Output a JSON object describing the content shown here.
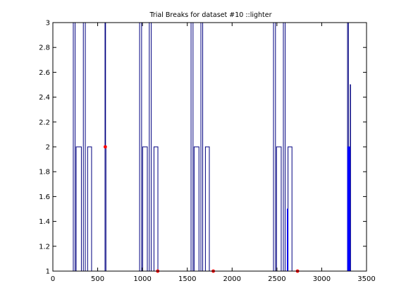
{
  "chart_data": {
    "type": "line",
    "title": "Trial Breaks for dataset #10 ::lighter",
    "xlabel": "",
    "ylabel": "",
    "xlim": [
      0,
      3500
    ],
    "ylim": [
      1,
      3
    ],
    "xticks": [
      0,
      500,
      1000,
      1500,
      2000,
      2500,
      3000,
      3500
    ],
    "yticks": [
      1,
      1.2,
      1.4,
      1.6,
      1.8,
      2,
      2.2,
      2.4,
      2.6,
      2.8,
      3
    ],
    "grid": false,
    "series": [
      {
        "color": "#000080",
        "style": "step",
        "points": [
          [
            0,
            1
          ],
          [
            228,
            1
          ],
          [
            228,
            3
          ],
          [
            248,
            3
          ],
          [
            248,
            1
          ],
          [
            260,
            1
          ],
          [
            260,
            2
          ],
          [
            318,
            2
          ],
          [
            318,
            1
          ],
          [
            340,
            1
          ],
          [
            340,
            3
          ],
          [
            362,
            3
          ],
          [
            362,
            1
          ],
          [
            388,
            1
          ],
          [
            388,
            2
          ],
          [
            432,
            2
          ],
          [
            432,
            1
          ],
          [
            582,
            1
          ],
          [
            582,
            3
          ],
          [
            588,
            3
          ],
          [
            588,
            2
          ],
          [
            592,
            2
          ],
          [
            592,
            1
          ],
          [
            968,
            1
          ],
          [
            968,
            3
          ],
          [
            990,
            3
          ],
          [
            990,
            1
          ],
          [
            1002,
            1
          ],
          [
            1002,
            2
          ],
          [
            1054,
            2
          ],
          [
            1054,
            1
          ],
          [
            1076,
            1
          ],
          [
            1076,
            3
          ],
          [
            1098,
            3
          ],
          [
            1098,
            1
          ],
          [
            1128,
            1
          ],
          [
            1128,
            2
          ],
          [
            1172,
            2
          ],
          [
            1172,
            1
          ],
          [
            1542,
            1
          ],
          [
            1542,
            3
          ],
          [
            1564,
            3
          ],
          [
            1564,
            1
          ],
          [
            1576,
            1
          ],
          [
            1576,
            2
          ],
          [
            1630,
            2
          ],
          [
            1630,
            1
          ],
          [
            1652,
            1
          ],
          [
            1652,
            3
          ],
          [
            1672,
            3
          ],
          [
            1672,
            1
          ],
          [
            1702,
            1
          ],
          [
            1702,
            2
          ],
          [
            1746,
            2
          ],
          [
            1746,
            1
          ],
          [
            2462,
            1
          ],
          [
            2462,
            3
          ],
          [
            2484,
            3
          ],
          [
            2484,
            1
          ],
          [
            2496,
            1
          ],
          [
            2496,
            2
          ],
          [
            2548,
            2
          ],
          [
            2548,
            1
          ],
          [
            2572,
            1
          ],
          [
            2572,
            3
          ],
          [
            2592,
            3
          ],
          [
            2592,
            1
          ],
          [
            2624,
            1
          ],
          [
            2624,
            2
          ],
          [
            2668,
            2
          ],
          [
            2668,
            1
          ],
          [
            3288,
            1
          ],
          [
            3288,
            3
          ],
          [
            3298,
            3
          ],
          [
            3298,
            1
          ],
          [
            3308,
            1
          ],
          [
            3308,
            2
          ],
          [
            3318,
            2
          ],
          [
            3318,
            2.5
          ],
          [
            3322,
            2.5
          ],
          [
            3322,
            1
          ],
          [
            3500,
            1
          ]
        ]
      },
      {
        "color": "#0000ff",
        "style": "step",
        "points": [
          [
            2615,
            1
          ],
          [
            2615,
            1.5
          ],
          [
            2621,
            1.5
          ],
          [
            2621,
            1
          ]
        ]
      },
      {
        "color": "#0000ff",
        "style": "filled-band",
        "points": [
          [
            3290,
            1
          ],
          [
            3290,
            2
          ],
          [
            3315,
            2
          ],
          [
            3315,
            1
          ]
        ]
      }
    ],
    "markers": {
      "color": "#ff0000",
      "points": [
        [
          585,
          2
        ],
        [
          1170,
          1
        ],
        [
          1790,
          1
        ],
        [
          2730,
          1
        ]
      ]
    }
  }
}
